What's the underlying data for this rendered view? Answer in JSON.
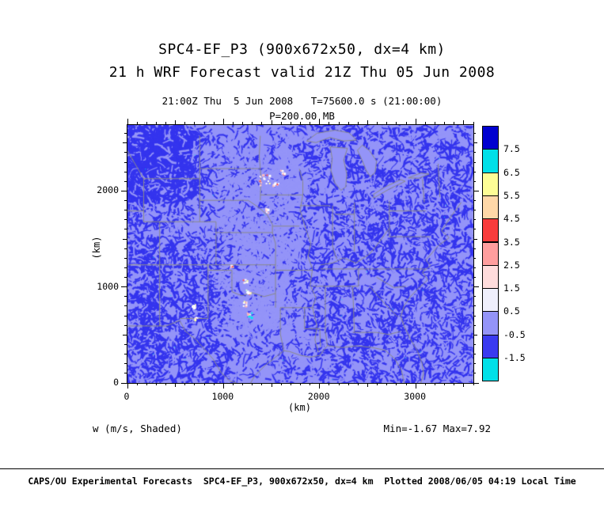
{
  "title": {
    "line1": "SPC4-EF_P3 (900x672x50, dx=4 km)",
    "line2": "21 h WRF Forecast valid 21Z Thu 05 Jun 2008"
  },
  "header": {
    "time_line": "21:00Z Thu  5 Jun 2008   T=75600.0 s (21:00:00)",
    "level_line": "P=200.00 MB"
  },
  "annotations": {
    "field_label": "w (m/s, Shaded)",
    "stats": "Min=-1.67 Max=7.92"
  },
  "footer": {
    "text": "CAPS/OU Experimental Forecasts  SPC4-EF_P3, 900x672x50, dx=4 km  Plotted 2008/06/05 04:19 Local Time"
  },
  "chart_data": {
    "type": "heatmap",
    "title": "SPC4-EF_P3 (900x672x50, dx=4 km)",
    "subtitle": "21 h WRF Forecast valid 21Z Thu 05 Jun 2008",
    "field": "w (m/s, Shaded)",
    "level": "P=200.00 MB",
    "valid_time": "21:00Z Thu  5 Jun 2008",
    "model_time": "T=75600.0 s (21:00:00)",
    "xlabel": "(km)",
    "ylabel": "(km)",
    "xlim": [
      0,
      3600
    ],
    "ylim": [
      0,
      2688
    ],
    "x_ticks": [
      0,
      1000,
      2000,
      3000
    ],
    "y_ticks": [
      0,
      1000,
      2000
    ],
    "min": -1.67,
    "max": 7.92,
    "colorbar": {
      "boundary_labels": [
        "7.5",
        "6.5",
        "5.5",
        "4.5",
        "3.5",
        "2.5",
        "1.5",
        "0.5",
        "-0.5",
        "-1.5"
      ],
      "colors_top_to_bottom": [
        "#0000d0",
        "#00e0e8",
        "#fdfd96",
        "#ffd8a8",
        "#f83c3c",
        "#ff9e9e",
        "#ffdcdc",
        "#efeffc",
        "#9494f8",
        "#3a3af0",
        "#00e0e8"
      ]
    },
    "map_base_color": "#9494f8",
    "map_pattern_color": "#3434ee",
    "map_border_color": "#8a8a8a"
  }
}
